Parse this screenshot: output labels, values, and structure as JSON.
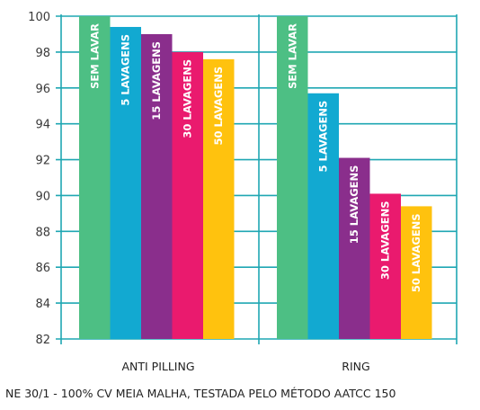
{
  "chart_data": {
    "type": "bar",
    "categories": [
      "ANTI PILLING",
      "RING"
    ],
    "series": [
      {
        "name": "SEM LAVAR",
        "values": [
          100,
          100
        ],
        "color": "#4dbf84"
      },
      {
        "name": "5 LAVAGENS",
        "values": [
          99.4,
          95.7
        ],
        "color": "#12a9d1"
      },
      {
        "name": "15 LAVAGENS",
        "values": [
          99.0,
          92.1
        ],
        "color": "#8a2e8c"
      },
      {
        "name": "30 LAVAGENS",
        "values": [
          98.0,
          90.1
        ],
        "color": "#ea1a6e"
      },
      {
        "name": "50 LAVAGENS",
        "values": [
          97.6,
          89.4
        ],
        "color": "#ffc20e"
      }
    ],
    "ylim": [
      82,
      100
    ],
    "yticks": [
      "100",
      "98",
      "96",
      "94",
      "92",
      "90",
      "88",
      "86",
      "84",
      "82"
    ],
    "grid": true,
    "axis_color": "#1fa7b3",
    "xlabel": "",
    "ylabel": "",
    "labels_inside_bars": true
  },
  "footnote": "NE 30/1 - 100% CV MEIA MALHA, TESTADA PELO MÉTODO AATCC 150"
}
